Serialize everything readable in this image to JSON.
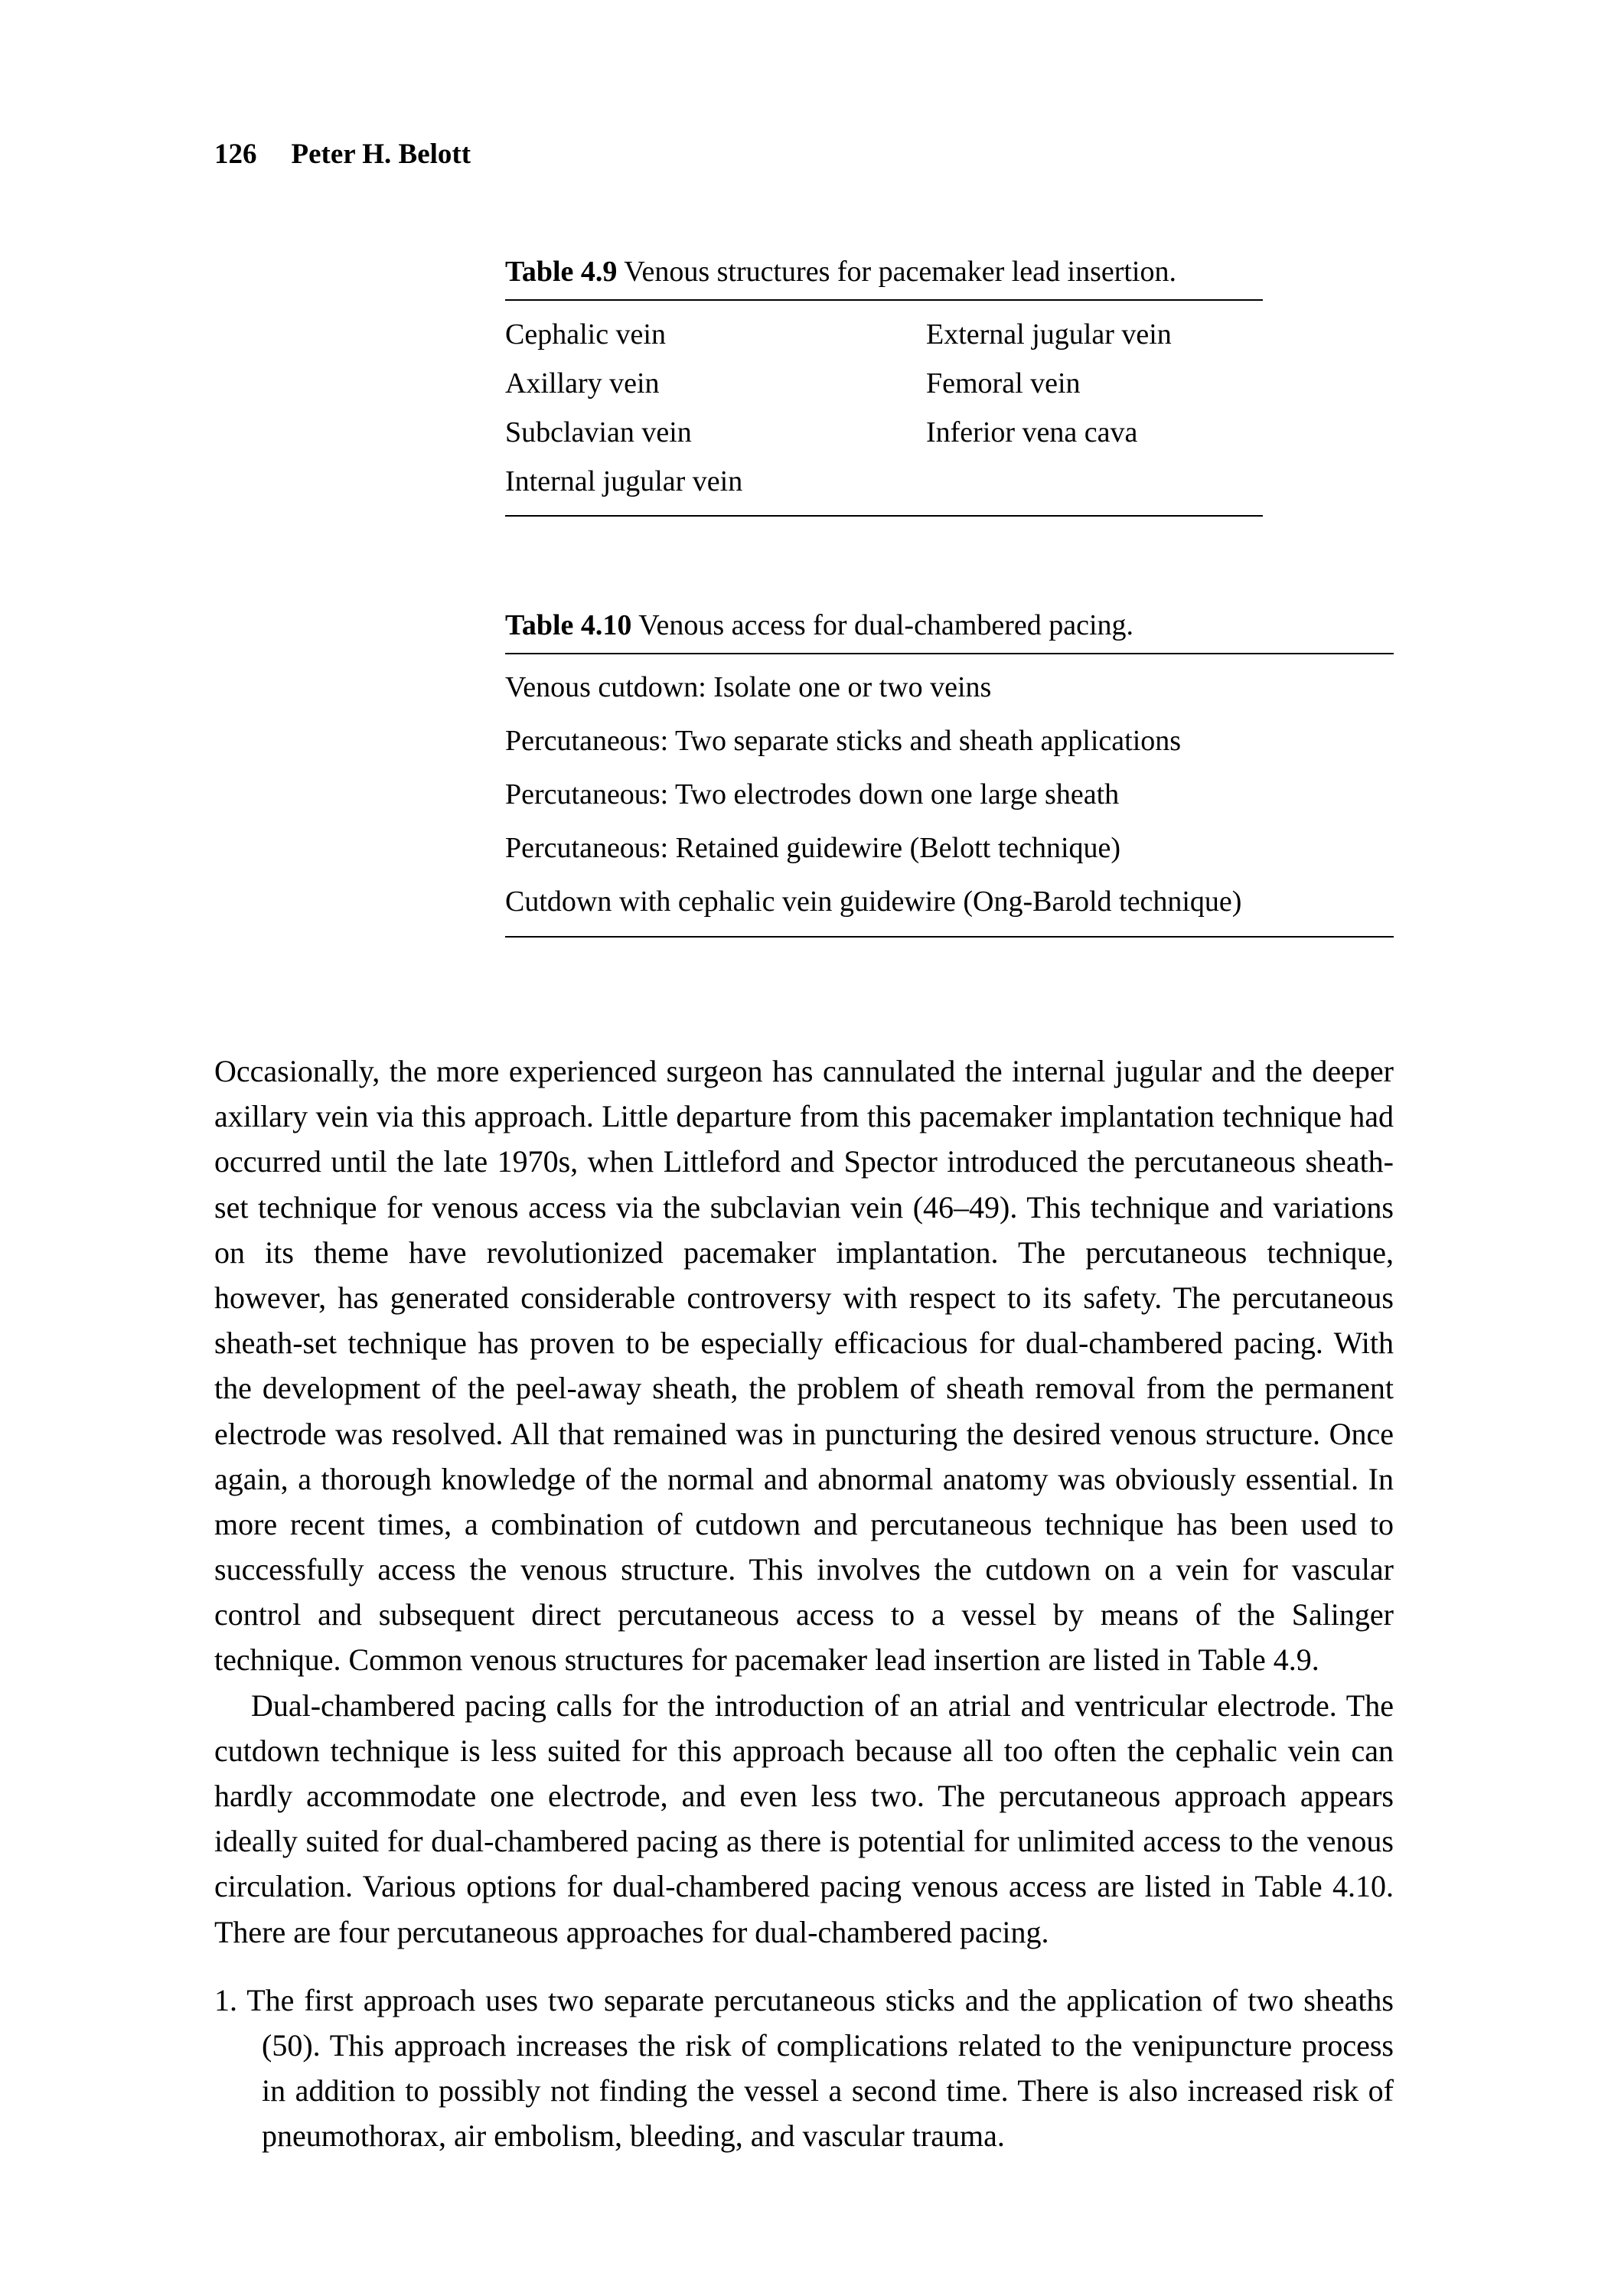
{
  "header": {
    "page_number": "126",
    "author": "Peter H. Belott"
  },
  "table_4_9": {
    "label": "Table 4.9",
    "caption": "Venous structures for pacemaker lead insertion.",
    "rows": [
      {
        "col1": "Cephalic vein",
        "col2": "External jugular vein"
      },
      {
        "col1": "Axillary vein",
        "col2": "Femoral vein"
      },
      {
        "col1": "Subclavian vein",
        "col2": "Inferior vena cava"
      },
      {
        "col1": "Internal jugular vein",
        "col2": ""
      }
    ]
  },
  "table_4_10": {
    "label": "Table 4.10",
    "caption": "Venous access for dual-chambered pacing.",
    "items": [
      "Venous cutdown: Isolate one or two veins",
      "Percutaneous: Two separate sticks and sheath applications",
      "Percutaneous: Two electrodes down one large sheath",
      "Percutaneous: Retained guidewire (Belott technique)",
      "Cutdown with cephalic vein guidewire (Ong-Barold technique)"
    ]
  },
  "body": {
    "paragraph_1": "Occasionally, the more experienced surgeon has cannulated the internal jugular and the deeper axillary vein via this approach. Little departure from this pacemaker implantation technique had occurred until the late 1970s, when Littleford and Spector introduced the percutaneous sheath-set technique for venous access via the subclavian vein (46–49). This technique and variations on its theme have revolutionized pacemaker implantation. The percutaneous technique, however, has generated considerable controversy with respect to its safety. The percutaneous sheath-set technique has proven to be especially efficacious for dual-chambered pacing. With the development of the peel-away sheath, the problem of sheath removal from the permanent electrode was resolved. All that remained was in puncturing the desired venous structure. Once again, a thorough knowledge of the normal and abnormal anatomy was obviously essential. In more recent times, a combination of cutdown and percutaneous technique has been used to successfully access the venous structure. This involves the cutdown on a vein for vascular control and subsequent direct percutaneous access to a vessel by means of the Salinger technique. Common venous structures for pacemaker lead insertion are listed in Table 4.9.",
    "paragraph_2": "Dual-chambered pacing calls for the introduction of an atrial and ventricular electrode. The cutdown technique is less suited for this approach because all too often the cephalic vein can hardly accommodate one electrode, and even less two. The percutaneous approach appears ideally suited for dual-chambered pacing as there is potential for unlimited access to the venous circulation. Various options for dual-chambered pacing venous access are listed in Table 4.10. There are four percutaneous approaches for dual-chambered pacing.",
    "list_item_1": "1. The first approach uses two separate percutaneous sticks and the application of two sheaths (50). This approach increases the risk of complications related to the venipuncture process in addition to possibly not finding the vessel a second time. There is also increased risk of pneumothorax, air embolism, bleeding, and vascular trauma."
  }
}
